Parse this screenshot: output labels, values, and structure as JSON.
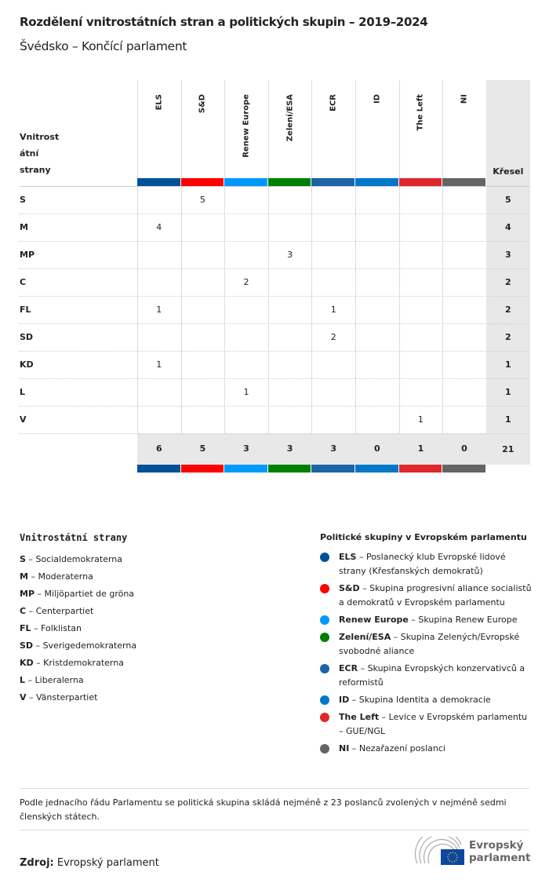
{
  "title": "Rozdělení vnitrostátních stran a politických skupin – 2019–2024",
  "subtitle": "Švédsko – Končící parlament",
  "chart_data": {
    "type": "table",
    "row_header": "Vnitrostátní strany",
    "row_header_display": [
      "Vnitrost",
      "átní",
      "strany"
    ],
    "total_header": "Křesel",
    "columns": [
      {
        "name": "ELS",
        "color": "#00519A"
      },
      {
        "name": "S&D",
        "color": "#FF0000"
      },
      {
        "name": "Renew Europe",
        "color": "#009AFF"
      },
      {
        "name": "Zelení/ESA",
        "color": "#008000"
      },
      {
        "name": "ECR",
        "color": "#1C64A5"
      },
      {
        "name": "ID",
        "color": "#0077C8"
      },
      {
        "name": "The Left",
        "color": "#E0272B"
      },
      {
        "name": "NI",
        "color": "#646464"
      }
    ],
    "rows": [
      {
        "party": "S",
        "values": [
          null,
          5,
          null,
          null,
          null,
          null,
          null,
          null
        ],
        "total": 5
      },
      {
        "party": "M",
        "values": [
          4,
          null,
          null,
          null,
          null,
          null,
          null,
          null
        ],
        "total": 4
      },
      {
        "party": "MP",
        "values": [
          null,
          null,
          null,
          3,
          null,
          null,
          null,
          null
        ],
        "total": 3
      },
      {
        "party": "C",
        "values": [
          null,
          null,
          2,
          null,
          null,
          null,
          null,
          null
        ],
        "total": 2
      },
      {
        "party": "FL",
        "values": [
          1,
          null,
          null,
          null,
          1,
          null,
          null,
          null
        ],
        "total": 2
      },
      {
        "party": "SD",
        "values": [
          null,
          null,
          null,
          null,
          2,
          null,
          null,
          null
        ],
        "total": 2
      },
      {
        "party": "KD",
        "values": [
          1,
          null,
          null,
          null,
          null,
          null,
          null,
          null
        ],
        "total": 1
      },
      {
        "party": "L",
        "values": [
          null,
          null,
          1,
          null,
          null,
          null,
          null,
          null
        ],
        "total": 1
      },
      {
        "party": "V",
        "values": [
          null,
          null,
          null,
          null,
          null,
          null,
          1,
          null
        ],
        "total": 1
      }
    ],
    "column_totals": [
      6,
      5,
      3,
      3,
      3,
      0,
      1,
      0
    ],
    "grand_total": 21
  },
  "legend_parties": {
    "title": "Vnitrostátní strany",
    "items": [
      {
        "abbr": "S",
        "name": "Socialdemokraterna"
      },
      {
        "abbr": "M",
        "name": "Moderaterna"
      },
      {
        "abbr": "MP",
        "name": "Miljöpartiet de gröna"
      },
      {
        "abbr": "C",
        "name": "Centerpartiet"
      },
      {
        "abbr": "FL",
        "name": "Folklistan"
      },
      {
        "abbr": "SD",
        "name": "Sverigedemokraterna"
      },
      {
        "abbr": "KD",
        "name": "Kristdemokraterna"
      },
      {
        "abbr": "L",
        "name": "Liberalerna"
      },
      {
        "abbr": "V",
        "name": "Vänsterpartiet"
      }
    ]
  },
  "legend_groups": {
    "title": "Politické skupiny v Evropském parlamentu",
    "items": [
      {
        "abbr": "ELS",
        "name": "Poslanecký klub Evropské lidové strany (Křesťanských demokratů)",
        "color": "#00519A"
      },
      {
        "abbr": "S&D",
        "name": "Skupina progresivní aliance socialistů a demokratů v Evropském parlamentu",
        "color": "#FF0000"
      },
      {
        "abbr": "Renew Europe",
        "name": "Skupina Renew Europe",
        "color": "#009AFF"
      },
      {
        "abbr": "Zelení/ESA",
        "name": "Skupina Zelených/Evropské svobodné aliance",
        "color": "#008000"
      },
      {
        "abbr": "ECR",
        "name": "Skupina Evropských konzervativců a reformistů",
        "color": "#1C64A5"
      },
      {
        "abbr": "ID",
        "name": "Skupina Identita a demokracie",
        "color": "#0077C8"
      },
      {
        "abbr": "The Left",
        "name": "Levice v Evropském parlamentu – GUE/NGL",
        "color": "#E0272B"
      },
      {
        "abbr": "NI",
        "name": "Nezařazení poslanci",
        "color": "#646464"
      }
    ]
  },
  "note": "Podle jednacího řádu Parlamentu se politická skupina skládá nejméně z 23 poslanců zvolených v nejméně sedmi členských státech.",
  "source": {
    "label": "Zdroj:",
    "value": "Evropský parlament"
  },
  "logo": {
    "line1": "Evropský",
    "line2": "parlament"
  }
}
